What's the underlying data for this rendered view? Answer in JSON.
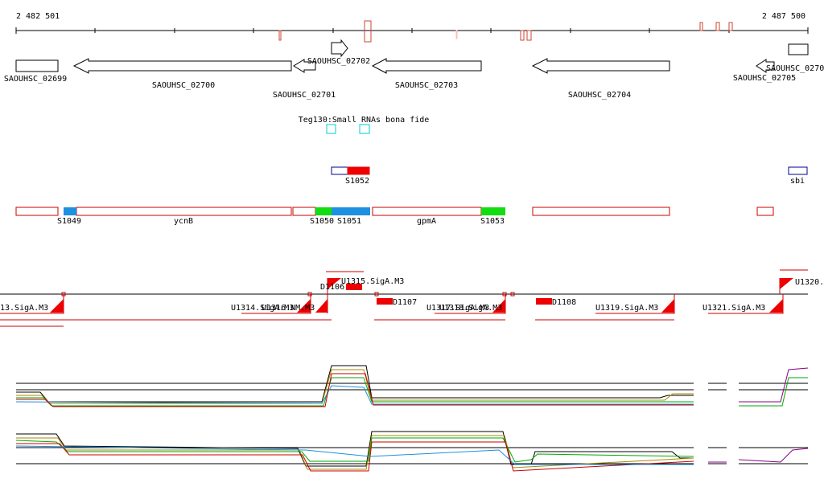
{
  "scale": {
    "start": "2 482 501",
    "end": "2 487 500"
  },
  "genes": [
    "SAOUHSC_02699",
    "SAOUHSC_02700",
    "SAOUHSC_02701",
    "SAOUHSC_02702",
    "SAOUHSC_02703",
    "SAOUHSC_02704",
    "SAOUHSC_02705",
    "SAOUHSC_0270"
  ],
  "srna_track": {
    "label": "Teg130:Small RNAs bona fide"
  },
  "features": [
    "S1052",
    "sbi"
  ],
  "segments": [
    "S1049",
    "ycnB",
    "S1050",
    "S1051",
    "gpmA",
    "S1053"
  ],
  "promoters": [
    "13.SigA.M3",
    "U1314.SigA.M3",
    "U1316.NM.M3",
    "D1106",
    "U1315.SigA.M3",
    "D1107",
    "U1317.SigA.M3",
    "U1318.SigA.M3",
    "D1108",
    "U1319.SigA.M3",
    "U1321.SigA.M3",
    "U1320."
  ]
}
